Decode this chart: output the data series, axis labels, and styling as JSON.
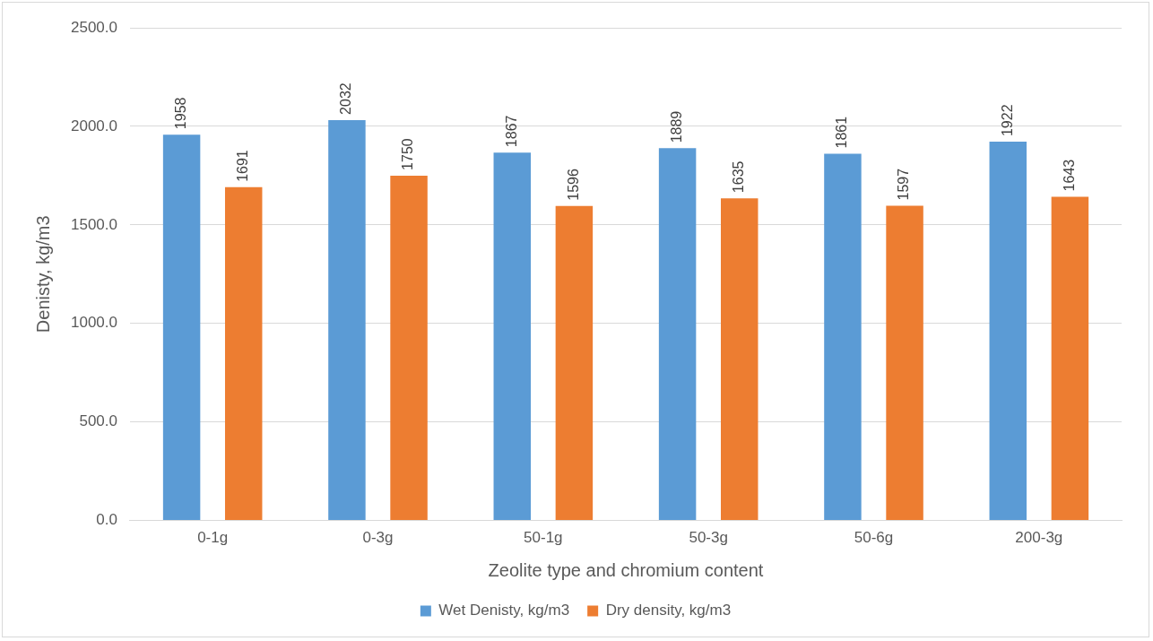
{
  "chart_data": {
    "type": "bar",
    "xlabel": "Zeolite type and chromium content",
    "ylabel": "Denisty, kg/m3",
    "categories": [
      "0-1g",
      "0-3g",
      "50-1g",
      "50-3g",
      "50-6g",
      "200-3g"
    ],
    "series": [
      {
        "name": "Wet Denisty, kg/m3",
        "color": "#5b9bd5",
        "values": [
          1958,
          2032,
          1867,
          1889,
          1861,
          1922
        ]
      },
      {
        "name": "Dry density, kg/m3",
        "color": "#ed7d31",
        "values": [
          1691,
          1750,
          1596,
          1635,
          1597,
          1643
        ]
      }
    ],
    "ylim": [
      0,
      2500
    ],
    "yticks": [
      {
        "value": 0,
        "label": "0.0"
      },
      {
        "value": 500,
        "label": "500.0"
      },
      {
        "value": 1000,
        "label": "1000.0"
      },
      {
        "value": 1500,
        "label": "1500.0"
      },
      {
        "value": 2000,
        "label": "2000.0"
      },
      {
        "value": 2500,
        "label": "2500.0"
      }
    ],
    "grid": "y",
    "legend": "bottom",
    "data_labels": true
  }
}
